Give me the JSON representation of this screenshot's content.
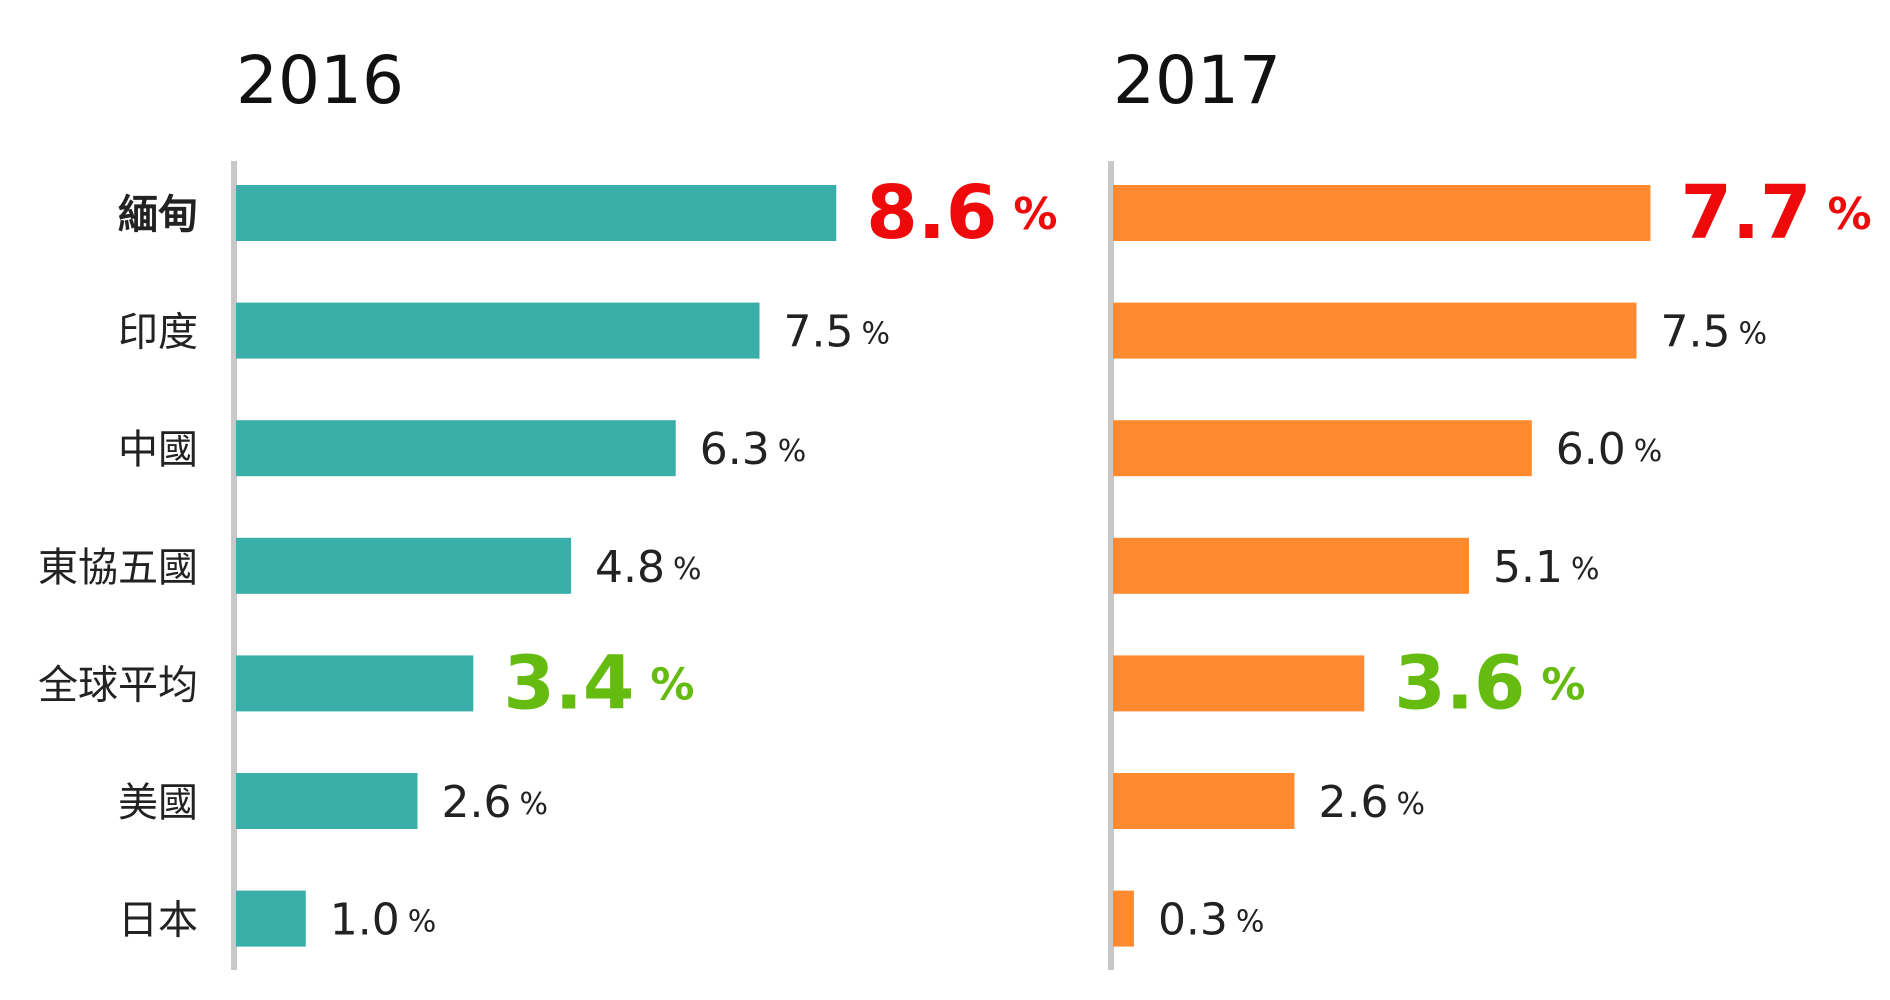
{
  "chart_data": [
    {
      "type": "bar",
      "orientation": "horizontal",
      "title": "2016",
      "categories": [
        "緬甸",
        "印度",
        "中國",
        "東協五國",
        "全球平均",
        "美國",
        "日本"
      ],
      "values": [
        8.6,
        7.5,
        6.3,
        4.8,
        3.4,
        2.6,
        1.0
      ],
      "value_labels": [
        "8.6",
        "7.5",
        "6.3",
        "4.8",
        "3.4",
        "2.6",
        "1.0"
      ],
      "value_suffix": "%",
      "value_label_colors": [
        "#ee0a0a",
        "#222222",
        "#222222",
        "#222222",
        "#66bb11",
        "#222222",
        "#222222"
      ],
      "color": "#3aafa9"
    },
    {
      "type": "bar",
      "orientation": "horizontal",
      "title": "2017",
      "values": [
        7.7,
        7.5,
        6.0,
        5.1,
        3.6,
        2.6,
        0.3
      ],
      "value_labels": [
        "7.7",
        "7.5",
        "6.0",
        "5.1",
        "3.6",
        "2.6",
        "0.3"
      ],
      "value_suffix": "%",
      "value_label_colors": [
        "#ee0a0a",
        "#222222",
        "#222222",
        "#222222",
        "#66bb11",
        "#222222",
        "#222222"
      ],
      "color": "#ff8a2f"
    }
  ]
}
